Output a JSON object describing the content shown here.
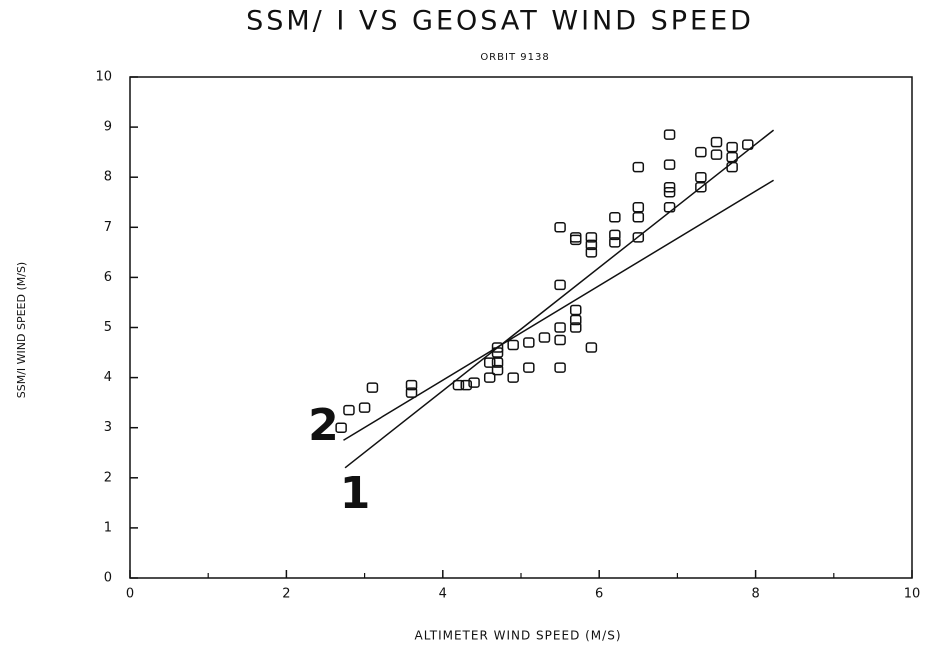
{
  "chart_data": {
    "type": "scatter",
    "title": "SSM/ I VS GEOSAT WIND SPEED",
    "subtitle": "ORBIT 9138",
    "x_label": "ALTIMETER WIND SPEED (M/S)",
    "y_label": "SSM/I WIND SPEED (M/S)",
    "xlim": [
      0,
      10
    ],
    "ylim": [
      0,
      10
    ],
    "xticks": [
      0,
      2,
      4,
      6,
      8,
      10
    ],
    "xminorticks": [
      1,
      3,
      5,
      7,
      9
    ],
    "yticks": [
      0,
      1,
      2,
      3,
      4,
      5,
      6,
      7,
      8,
      9,
      10
    ],
    "x": [
      2.7,
      2.8,
      3.0,
      3.1,
      3.6,
      3.6,
      4.2,
      4.3,
      4.4,
      4.6,
      4.6,
      4.7,
      4.7,
      4.7,
      4.7,
      4.9,
      4.9,
      5.1,
      5.1,
      5.3,
      5.5,
      5.5,
      5.5,
      5.5,
      5.5,
      5.7,
      5.7,
      5.7,
      5.7,
      5.7,
      5.9,
      5.9,
      5.9,
      5.9,
      6.2,
      6.2,
      6.2,
      6.5,
      6.5,
      6.5,
      6.5,
      6.9,
      6.9,
      6.9,
      6.9,
      6.9,
      7.3,
      7.3,
      7.3,
      7.5,
      7.5,
      7.7,
      7.7,
      7.7,
      7.9
    ],
    "values": [
      3.0,
      3.35,
      3.4,
      3.8,
      3.85,
      3.7,
      3.85,
      3.85,
      3.9,
      4.0,
      4.3,
      4.15,
      4.3,
      4.5,
      4.6,
      4.0,
      4.65,
      4.7,
      4.2,
      4.8,
      4.2,
      4.75,
      5.0,
      5.85,
      7.0,
      5.0,
      5.15,
      5.35,
      6.8,
      6.75,
      4.6,
      6.8,
      6.65,
      6.5,
      6.7,
      6.85,
      7.2,
      6.8,
      7.2,
      7.4,
      8.2,
      8.85,
      8.25,
      7.8,
      7.7,
      7.4,
      8.5,
      8.0,
      7.8,
      8.7,
      8.45,
      8.6,
      8.4,
      8.2,
      8.65
    ],
    "color": "#111111",
    "lines": [
      {
        "name": "1",
        "x": [
          2.75,
          8.23
        ],
        "values": [
          2.2,
          8.94
        ]
      },
      {
        "name": "2",
        "x": [
          2.73,
          8.23
        ],
        "values": [
          2.75,
          7.94
        ]
      }
    ]
  }
}
